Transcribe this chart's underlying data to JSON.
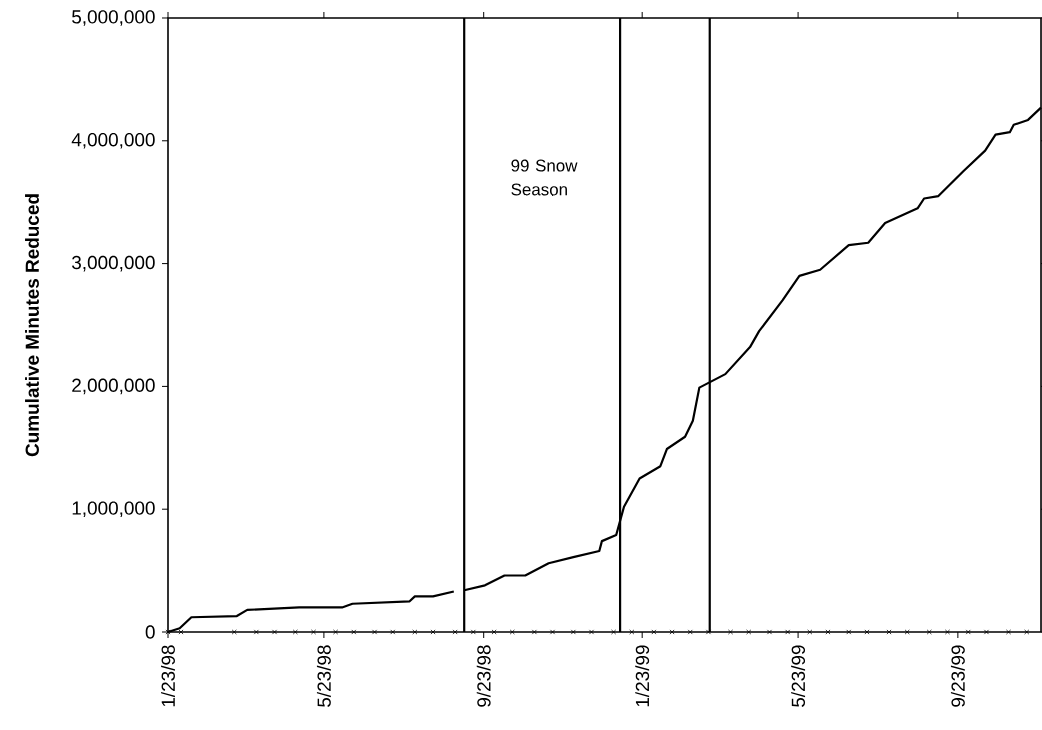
{
  "chart_data": {
    "type": "line",
    "ylabel": "Cumulative Minutes Reduced",
    "annotations": [
      "99 Snow Season"
    ],
    "xlim": [
      "1998-01-23",
      "1999-11-26"
    ],
    "xticks": [
      {
        "value": "1998-01-23",
        "label": "1/23/98"
      },
      {
        "value": "1998-05-23",
        "label": "5/23/98"
      },
      {
        "value": "1998-09-23",
        "label": "9/23/98"
      },
      {
        "value": "1999-01-23",
        "label": "1/23/99"
      },
      {
        "value": "1999-05-23",
        "label": "5/23/99"
      },
      {
        "value": "1999-09-23",
        "label": "9/23/99"
      }
    ],
    "ylim": [
      0,
      5000000
    ],
    "yticks": [
      {
        "value": 0,
        "label": "0"
      },
      {
        "value": 1000000,
        "label": "1,000,000"
      },
      {
        "value": 2000000,
        "label": "2,000,000"
      },
      {
        "value": 3000000,
        "label": "3,000,000"
      },
      {
        "value": 4000000,
        "label": "4,000,000"
      },
      {
        "value": 5000000,
        "label": "5,000,000"
      }
    ],
    "ref_lines": [
      {
        "axis": "x",
        "value": "1998-09-08",
        "color": "#000000"
      },
      {
        "axis": "x",
        "value": "1999-01-06",
        "color": "#000000"
      },
      {
        "axis": "x",
        "value": "1999-03-16",
        "color": "#000000"
      }
    ],
    "series": [
      {
        "color": "#000000",
        "x": [
          "1998-01-23",
          "1998-02-01",
          "1998-02-10",
          "1998-03-17",
          "1998-03-25",
          "1998-05-04",
          "1998-06-06",
          "1998-06-14",
          "1998-07-28",
          "1998-08-01",
          "1998-08-15",
          "1998-08-31",
          "1998-09-04",
          "1998-09-08",
          "1998-09-24",
          "1998-10-09",
          "1998-10-25",
          "1998-11-12",
          "1998-12-01",
          "1998-12-21",
          "1998-12-23",
          "1999-01-03",
          "1999-01-09",
          "1999-01-21",
          "1999-02-06",
          "1999-02-11",
          "1999-02-25",
          "1999-03-03",
          "1999-03-08",
          "1999-03-28",
          "1999-04-16",
          "1999-04-23",
          "1999-05-11",
          "1999-05-24",
          "1999-06-09",
          "1999-07-01",
          "1999-07-16",
          "1999-07-29",
          "1999-08-23",
          "1999-08-28",
          "1999-09-08",
          "1999-09-27",
          "1999-10-14",
          "1999-10-22",
          "1999-11-02",
          "1999-11-05",
          "1999-11-16",
          "1999-11-26"
        ],
        "values": [
          0,
          30000,
          120000,
          130000,
          180000,
          200000,
          200000,
          230000,
          250000,
          290000,
          290000,
          330000,
          null,
          340000,
          380000,
          460000,
          460000,
          560000,
          610000,
          660000,
          740000,
          790000,
          1020000,
          1250000,
          1350000,
          1490000,
          1590000,
          1720000,
          1990000,
          2100000,
          2320000,
          2450000,
          2700000,
          2900000,
          2950000,
          3150000,
          3170000,
          3330000,
          3450000,
          3530000,
          3550000,
          3750000,
          3920000,
          4050000,
          4070000,
          4130000,
          4170000,
          4270000
        ]
      },
      {
        "type": "scatter",
        "color": "#000000",
        "marker": "cross",
        "x": [
          "1998-01-23",
          "1998-02-02",
          "1998-03-15",
          "1998-04-01",
          "1998-04-15",
          "1998-05-01",
          "1998-05-15",
          "1998-06-01",
          "1998-06-15",
          "1998-07-01",
          "1998-07-15",
          "1998-08-01",
          "1998-08-15",
          "1998-09-01",
          "1998-09-15",
          "1998-10-01",
          "1998-10-15",
          "1998-11-01",
          "1998-11-15",
          "1998-12-01",
          "1998-12-15",
          "1999-01-01",
          "1999-01-15",
          "1999-02-01",
          "1999-02-15",
          "1999-03-01",
          "1999-03-15",
          "1999-04-01",
          "1999-04-15",
          "1999-05-01",
          "1999-05-15",
          "1999-06-01",
          "1999-06-15",
          "1999-07-01",
          "1999-07-15",
          "1999-08-01",
          "1999-08-15",
          "1999-09-01",
          "1999-09-15",
          "1999-10-01",
          "1999-10-15",
          "1999-11-01",
          "1999-11-15"
        ],
        "values": [
          0,
          0,
          0,
          0,
          0,
          0,
          0,
          0,
          0,
          0,
          0,
          0,
          0,
          0,
          0,
          0,
          0,
          0,
          0,
          0,
          0,
          0,
          0,
          0,
          0,
          0,
          0,
          0,
          0,
          0,
          0,
          0,
          0,
          0,
          0,
          0,
          0,
          0,
          0,
          0,
          0,
          0,
          0
        ]
      }
    ]
  }
}
